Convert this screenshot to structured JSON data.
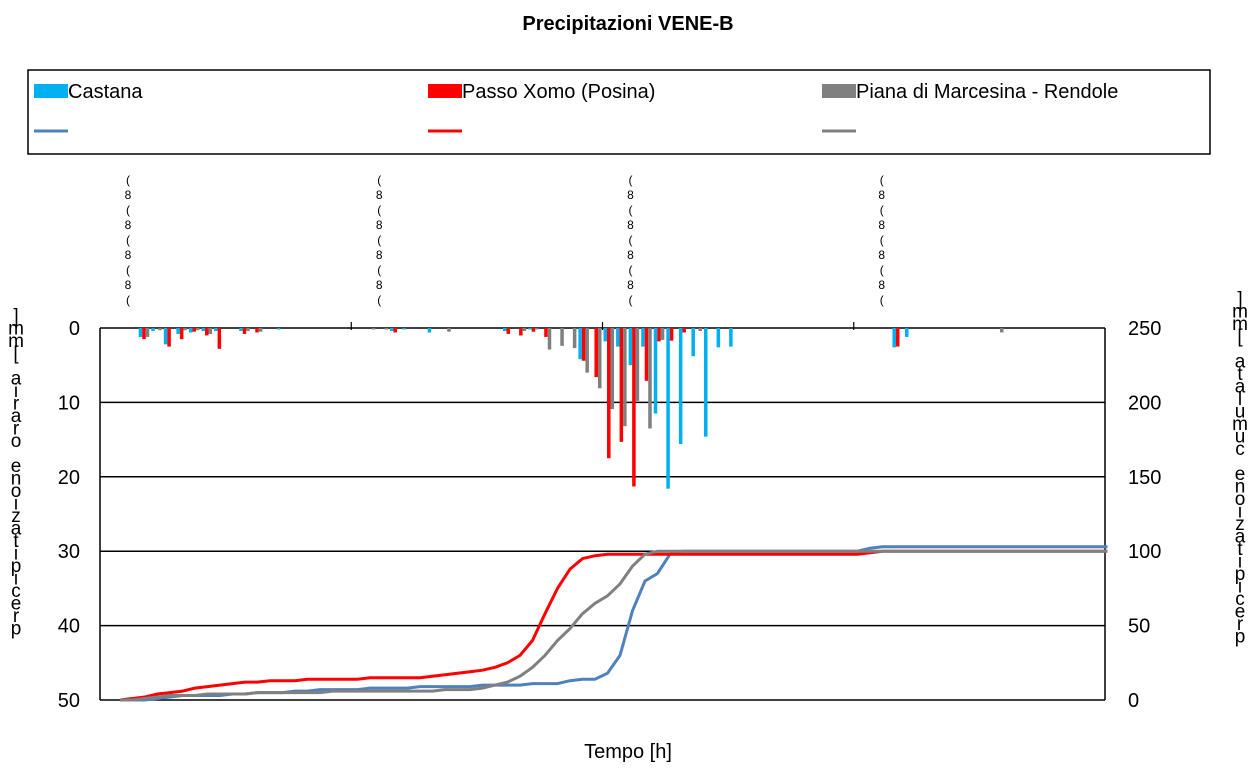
{
  "chart_data": {
    "type": "bar",
    "title": "Precipitazioni VENE-B",
    "xlabel": "Tempo [h]",
    "ylabel": "precipitazione oraria [mm]",
    "y2label": "precipitazione cumulata [mm]",
    "ylim": [
      0,
      50
    ],
    "y_inverted": true,
    "y_ticks": [
      "0",
      "10",
      "20",
      "30",
      "40",
      "50"
    ],
    "y2lim": [
      0,
      250
    ],
    "y2_ticks": [
      "0",
      "50",
      "100",
      "150",
      "200",
      "250"
    ],
    "x_count": 80,
    "x_day_boundaries": [
      20,
      40,
      60
    ],
    "legend_position": "top",
    "series": [
      {
        "name": "Castana",
        "kind": "bar",
        "color": "#00B0F0",
        "values": [
          0,
          0,
          0,
          0,
          0,
          0,
          0,
          0,
          0,
          0,
          0,
          0,
          0,
          0,
          0,
          0,
          0,
          0,
          0,
          0,
          0,
          0,
          0,
          0,
          0,
          0,
          0,
          0,
          0,
          0,
          0,
          0,
          0,
          0,
          0,
          0,
          0,
          0,
          0,
          0,
          0,
          0,
          0,
          0,
          0,
          0,
          0,
          0,
          0,
          0,
          0,
          0,
          0,
          0,
          0,
          0,
          0,
          0,
          0,
          0,
          0,
          0,
          0,
          0,
          0,
          0,
          0,
          0,
          0,
          0,
          0,
          0,
          0,
          0,
          0,
          0,
          0,
          0,
          0,
          0
        ],
        "sparse": {
          "3": 1.2,
          "4": 0.4,
          "5": 2.2,
          "6": 0.8,
          "7": 0.6,
          "8": 0.4,
          "9": 0.4,
          "11": 0.4,
          "14": 0.2,
          "23": 0.4,
          "24": 0.2,
          "26": 0.6,
          "32": 0.4,
          "34": 0.2,
          "38": 4.2,
          "40": 1.8,
          "41": 2.5,
          "42": 5.0,
          "43": 2.5,
          "44": 11.5,
          "45": 21.6,
          "46": 15.6,
          "47": 3.8,
          "48": 14.6,
          "49": 2.6,
          "50": 2.5,
          "63": 2.6,
          "64": 1.2
        }
      },
      {
        "name": "Passo Xomo (Posina)",
        "kind": "bar",
        "color": "#FF0000",
        "sparse": {
          "3": 1.5,
          "5": 2.5,
          "6": 1.5,
          "7": 0.5,
          "8": 1.0,
          "9": 2.8,
          "11": 0.8,
          "12": 0.6,
          "23": 0.6,
          "32": 0.8,
          "33": 1.0,
          "34": 0.5,
          "35": 1.2,
          "38": 4.4,
          "39": 6.6,
          "40": 17.5,
          "41": 15.3,
          "42": 21.3,
          "43": 7.1,
          "44": 1.8,
          "45": 1.7,
          "46": 0.6,
          "63": 2.5
        }
      },
      {
        "name": "Piana di Marcesina - Rendole",
        "kind": "bar",
        "color": "#808080",
        "sparse": {
          "3": 1.2,
          "4": 0.3,
          "6": 0.3,
          "7": 0.3,
          "8": 0.8,
          "11": 0.4,
          "12": 0.5,
          "21": 0.2,
          "22": 0.2,
          "27": 0.5,
          "33": 0.4,
          "34": 0.2,
          "35": 2.9,
          "36": 2.4,
          "37": 2.7,
          "38": 6.0,
          "39": 8.1,
          "40": 10.9,
          "41": 13.2,
          "42": 9.8,
          "43": 13.5,
          "44": 1.6,
          "47": 0.4,
          "71": 0.6
        }
      },
      {
        "name": "",
        "kind": "line",
        "axis": "y2",
        "color": "#4F81BD",
        "values": [
          0,
          0,
          0,
          1,
          2,
          3,
          3,
          3,
          3,
          4,
          4,
          5,
          5,
          5,
          6,
          6,
          7,
          7,
          7,
          7,
          8,
          8,
          8,
          8,
          9,
          9,
          9,
          9,
          9,
          10,
          10,
          10,
          10,
          11,
          11,
          11,
          13,
          14,
          14,
          18,
          30,
          60,
          80,
          85,
          98,
          100,
          100,
          100,
          100,
          100,
          100,
          100,
          100,
          100,
          100,
          100,
          100,
          100,
          100,
          100,
          102,
          103,
          103,
          103,
          103,
          103,
          103,
          103,
          103,
          103,
          103,
          103,
          103,
          103,
          103,
          103,
          103,
          103,
          103,
          103
        ]
      },
      {
        "name": "",
        "kind": "line",
        "axis": "y2",
        "color": "#FF0000",
        "values": [
          0,
          1,
          2,
          4,
          5,
          6,
          8,
          9,
          10,
          11,
          12,
          12,
          13,
          13,
          13,
          14,
          14,
          14,
          14,
          14,
          15,
          15,
          15,
          15,
          15,
          16,
          17,
          18,
          19,
          20,
          22,
          25,
          30,
          40,
          58,
          75,
          88,
          95,
          97,
          98,
          98,
          98,
          98,
          98,
          98,
          98,
          98,
          98,
          98,
          98,
          98,
          98,
          98,
          98,
          98,
          98,
          98,
          98,
          98,
          98,
          99,
          100,
          100,
          100,
          100,
          100,
          100,
          100,
          100,
          100,
          100,
          100,
          100,
          100,
          100,
          100,
          100,
          100,
          100,
          100
        ]
      },
      {
        "name": "",
        "kind": "line",
        "axis": "y2",
        "color": "#808080",
        "values": [
          0,
          0,
          1,
          2,
          3,
          3,
          3,
          4,
          4,
          4,
          4,
          5,
          5,
          5,
          5,
          5,
          5,
          6,
          6,
          6,
          6,
          6,
          6,
          6,
          6,
          6,
          7,
          7,
          7,
          8,
          10,
          12,
          16,
          22,
          30,
          40,
          48,
          58,
          65,
          70,
          78,
          90,
          98,
          100,
          100,
          100,
          100,
          100,
          100,
          100,
          100,
          100,
          100,
          100,
          100,
          100,
          100,
          100,
          100,
          100,
          100,
          100,
          100,
          100,
          100,
          100,
          100,
          100,
          100,
          100,
          100,
          100,
          100,
          100,
          100,
          100,
          100,
          100,
          100,
          100
        ]
      }
    ]
  }
}
